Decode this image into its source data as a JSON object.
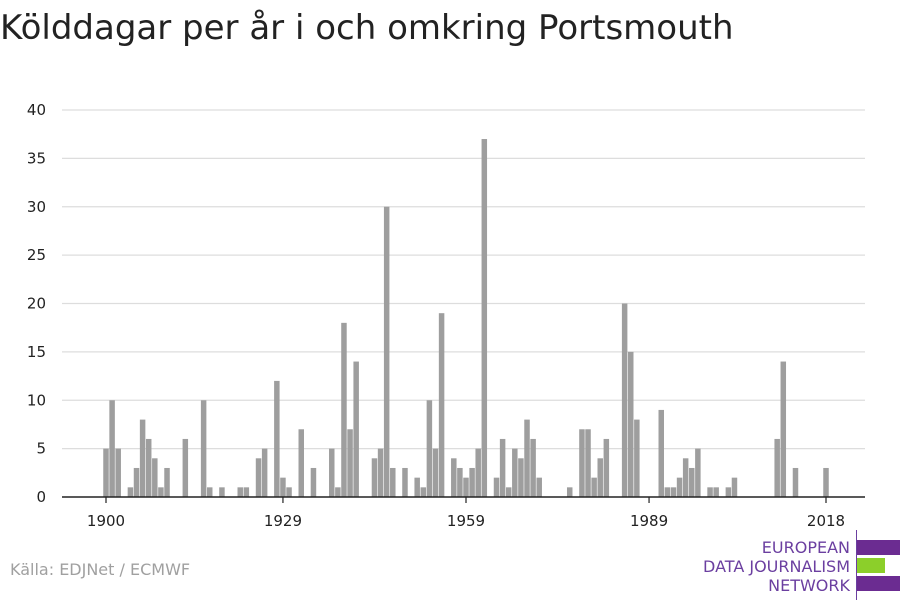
{
  "title": "Kölddagar per år i och omkring Portsmouth",
  "source": "Källa: EDJNet / ECMWF",
  "logo": {
    "lines": [
      "EUROPEAN",
      "DATA JOURNALISM",
      "NETWORK"
    ],
    "colors": {
      "purple": "#6b2c91",
      "green": "#8ccf2a",
      "text": "#6b3fa0"
    }
  },
  "colors": {
    "bar": "#9e9e9e",
    "grid": "#dddddd",
    "axis": "#222222",
    "tick_text": "#222222"
  },
  "chart_data": {
    "type": "bar",
    "title": "Kölddagar per år i och omkring Portsmouth",
    "xlabel": "",
    "ylabel": "",
    "ylim": [
      0,
      40
    ],
    "yticks": [
      0,
      5,
      10,
      15,
      20,
      25,
      30,
      35,
      40
    ],
    "xticks": [
      1900,
      1929,
      1959,
      1989,
      2018
    ],
    "xlim": [
      1894,
      2024
    ],
    "grid": true,
    "x": [
      1900,
      1901,
      1902,
      1903,
      1904,
      1905,
      1906,
      1907,
      1908,
      1909,
      1910,
      1911,
      1912,
      1913,
      1914,
      1915,
      1916,
      1917,
      1918,
      1919,
      1920,
      1921,
      1922,
      1923,
      1924,
      1925,
      1926,
      1927,
      1928,
      1929,
      1930,
      1931,
      1932,
      1933,
      1934,
      1935,
      1936,
      1937,
      1938,
      1939,
      1940,
      1941,
      1942,
      1943,
      1944,
      1945,
      1946,
      1947,
      1948,
      1949,
      1950,
      1951,
      1952,
      1953,
      1954,
      1955,
      1956,
      1957,
      1958,
      1959,
      1960,
      1961,
      1962,
      1963,
      1964,
      1965,
      1966,
      1967,
      1968,
      1969,
      1970,
      1971,
      1972,
      1973,
      1974,
      1975,
      1976,
      1977,
      1978,
      1979,
      1980,
      1981,
      1982,
      1983,
      1984,
      1985,
      1986,
      1987,
      1988,
      1989,
      1990,
      1991,
      1992,
      1993,
      1994,
      1995,
      1996,
      1997,
      1998,
      1999,
      2000,
      2001,
      2002,
      2003,
      2004,
      2005,
      2006,
      2007,
      2008,
      2009,
      2010,
      2011,
      2012,
      2013,
      2014,
      2015,
      2016,
      2017,
      2018
    ],
    "values": [
      5,
      10,
      5,
      0,
      1,
      3,
      8,
      6,
      4,
      1,
      3,
      0,
      0,
      6,
      0,
      0,
      10,
      1,
      0,
      1,
      0,
      0,
      1,
      1,
      0,
      4,
      5,
      0,
      12,
      2,
      1,
      0,
      7,
      0,
      3,
      0,
      0,
      5,
      1,
      18,
      7,
      14,
      0,
      0,
      4,
      5,
      30,
      3,
      0,
      3,
      0,
      2,
      1,
      10,
      5,
      19,
      0,
      4,
      3,
      2,
      3,
      5,
      37,
      0,
      2,
      6,
      1,
      5,
      4,
      8,
      6,
      2,
      0,
      0,
      0,
      0,
      1,
      0,
      7,
      7,
      2,
      4,
      6,
      0,
      0,
      20,
      15,
      8,
      0,
      0,
      0,
      9,
      1,
      1,
      2,
      4,
      3,
      5,
      0,
      1,
      1,
      0,
      1,
      2,
      0,
      0,
      0,
      0,
      0,
      0,
      6,
      14,
      0,
      3,
      0,
      0,
      0,
      0,
      3
    ]
  }
}
